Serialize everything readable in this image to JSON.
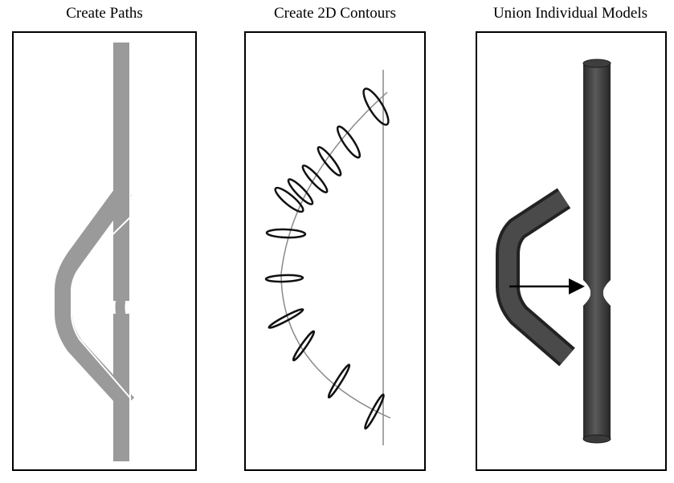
{
  "panels": [
    {
      "title": "Create Paths"
    },
    {
      "title": "Create 2D Contours"
    },
    {
      "title": "Union Individual Models"
    }
  ],
  "colors": {
    "frame": "#000000",
    "path_band": "#9a9a9a",
    "path_line": "#ffffff",
    "centerline": "#8a8a8a",
    "contour": "#111111",
    "model": "#3c3c3c",
    "arrow": "#000000"
  }
}
